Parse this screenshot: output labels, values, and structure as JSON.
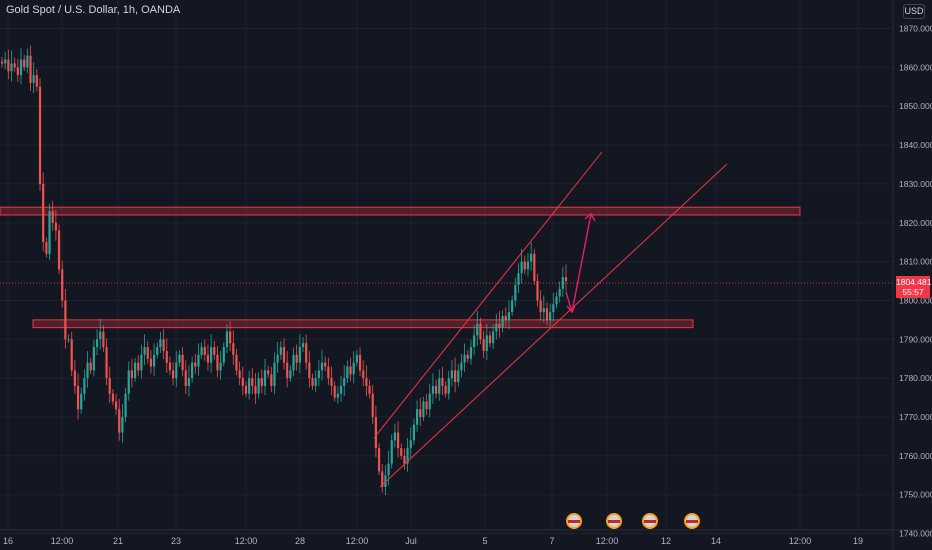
{
  "header": {
    "symbol_title": "Gold Spot / U.S. Dollar, 1h, OANDA",
    "currency": "USD"
  },
  "price_label": {
    "price": "1804.481",
    "countdown": "55:57"
  },
  "colors": {
    "background": "#131722",
    "up": "#26a69a",
    "down": "#ef5350",
    "zone": "#f23645",
    "arrow": "#e91e63"
  },
  "chart_data": {
    "type": "candlestick",
    "title": "",
    "ylim": [
      1740,
      1875
    ],
    "yticks": [
      1740,
      1750,
      1760,
      1770,
      1780,
      1790,
      1800,
      1810,
      1820,
      1830,
      1840,
      1850,
      1860,
      1870
    ],
    "yticklabels": [
      "1740.000",
      "1750.000",
      "1760.000",
      "1770.000",
      "1780.000",
      "1790.000",
      "1800.000",
      "1810.000",
      "1820.000",
      "1830.000",
      "1840.000",
      "1850.000",
      "1860.000",
      "1870.000"
    ],
    "xticklabels": [
      "16",
      "12:00",
      "21",
      "23",
      "12:00",
      "28",
      "12:00",
      "Jul",
      "5",
      "7",
      "12:00",
      "12",
      "14",
      "12:00",
      "19"
    ],
    "last_price": 1804.481,
    "resistance_zone": [
      1822,
      1824
    ],
    "support_zone": [
      1793,
      1795
    ],
    "path_close": [
      1861,
      1862,
      1859,
      1861,
      1860,
      1858,
      1862,
      1860,
      1863,
      1856,
      1858,
      1855,
      1830,
      1815,
      1812,
      1823,
      1820,
      1818,
      1808,
      1800,
      1790,
      1790,
      1782,
      1778,
      1772,
      1776,
      1780,
      1784,
      1782,
      1788,
      1790,
      1792,
      1788,
      1780,
      1776,
      1774,
      1772,
      1766,
      1770,
      1776,
      1782,
      1780,
      1784,
      1782,
      1786,
      1788,
      1785,
      1783,
      1786,
      1788,
      1790,
      1787,
      1784,
      1782,
      1780,
      1784,
      1786,
      1782,
      1778,
      1780,
      1784,
      1783,
      1786,
      1788,
      1786,
      1784,
      1788,
      1786,
      1782,
      1784,
      1788,
      1792,
      1789,
      1786,
      1782,
      1780,
      1778,
      1776,
      1780,
      1778,
      1776,
      1780,
      1778,
      1782,
      1781,
      1778,
      1784,
      1786,
      1788,
      1784,
      1780,
      1782,
      1786,
      1784,
      1788,
      1789,
      1784,
      1780,
      1778,
      1780,
      1782,
      1784,
      1783,
      1780,
      1778,
      1775,
      1776,
      1778,
      1780,
      1783,
      1781,
      1784,
      1786,
      1782,
      1780,
      1778,
      1776,
      1770,
      1762,
      1756,
      1752,
      1755,
      1758,
      1764,
      1766,
      1762,
      1760,
      1758,
      1762,
      1764,
      1768,
      1772,
      1770,
      1774,
      1772,
      1776,
      1778,
      1776,
      1780,
      1778,
      1776,
      1780,
      1782,
      1779,
      1782,
      1784,
      1786,
      1785,
      1788,
      1791,
      1794,
      1790,
      1787,
      1791,
      1789,
      1792,
      1794,
      1793,
      1796,
      1795,
      1797,
      1800,
      1804,
      1807,
      1810,
      1808,
      1810,
      1812,
      1805,
      1800,
      1797,
      1798,
      1795,
      1797,
      1799,
      1801,
      1803,
      1806,
      1805
    ]
  }
}
